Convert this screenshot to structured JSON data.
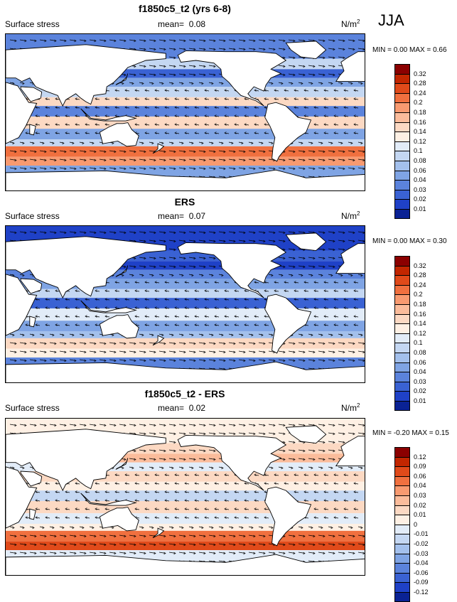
{
  "season": "JJA",
  "panels": [
    {
      "title": "f1850c5_t2 (yrs 6-8)",
      "variable": "Surface stress",
      "mean_label": "mean=",
      "mean_value": "0.08",
      "units_base": "N/m",
      "units_exp": "2",
      "min_label": "MIN =",
      "min_value": "0.00",
      "max_label": "MAX =",
      "max_value": "0.66",
      "levels": [
        "0.32",
        "0.28",
        "0.24",
        "0.2",
        "0.18",
        "0.16",
        "0.14",
        "0.12",
        "0.1",
        "0.08",
        "0.06",
        "0.04",
        "0.03",
        "0.02",
        "0.01"
      ],
      "colors": [
        "#8b0000",
        "#c22600",
        "#e04a1a",
        "#f0703f",
        "#f89a70",
        "#fbbc9b",
        "#fcd9c3",
        "#fef0e4",
        "#e2ecf8",
        "#c4d7f2",
        "#a3c0ec",
        "#7fa4e4",
        "#5b83dc",
        "#3a62d3",
        "#1f41c7",
        "#0a2294"
      ]
    },
    {
      "title": "ERS",
      "variable": "Surface stress",
      "mean_label": "mean=",
      "mean_value": "0.07",
      "units_base": "N/m",
      "units_exp": "2",
      "min_label": "MIN =",
      "min_value": "0.00",
      "max_label": "MAX =",
      "max_value": "0.30",
      "levels": [
        "0.32",
        "0.28",
        "0.24",
        "0.2",
        "0.18",
        "0.16",
        "0.14",
        "0.12",
        "0.1",
        "0.08",
        "0.06",
        "0.04",
        "0.03",
        "0.02",
        "0.01"
      ],
      "colors": [
        "#8b0000",
        "#c22600",
        "#e04a1a",
        "#f0703f",
        "#f89a70",
        "#fbbc9b",
        "#fcd9c3",
        "#fef0e4",
        "#e2ecf8",
        "#c4d7f2",
        "#a3c0ec",
        "#7fa4e4",
        "#5b83dc",
        "#3a62d3",
        "#1f41c7",
        "#0a2294"
      ]
    },
    {
      "title": "f1850c5_t2 - ERS",
      "variable": "Surface stress",
      "mean_label": "mean=",
      "mean_value": "0.02",
      "units_base": "N/m",
      "units_exp": "2",
      "min_label": "MIN =",
      "min_value": "-0.20",
      "max_label": "MAX =",
      "max_value": "0.15",
      "levels": [
        "0.12",
        "0.09",
        "0.06",
        "0.04",
        "0.03",
        "0.02",
        "0.01",
        "0",
        "-0.01",
        "-0.02",
        "-0.03",
        "-0.04",
        "-0.06",
        "-0.09",
        "-0.12"
      ],
      "colors": [
        "#8b0000",
        "#c22600",
        "#e04a1a",
        "#f0703f",
        "#f89a70",
        "#fbbc9b",
        "#fcd9c3",
        "#fef0e4",
        "#e2ecf8",
        "#c4d7f2",
        "#a3c0ec",
        "#7fa4e4",
        "#5b83dc",
        "#3a62d3",
        "#1f41c7",
        "#0a2294"
      ]
    }
  ]
}
